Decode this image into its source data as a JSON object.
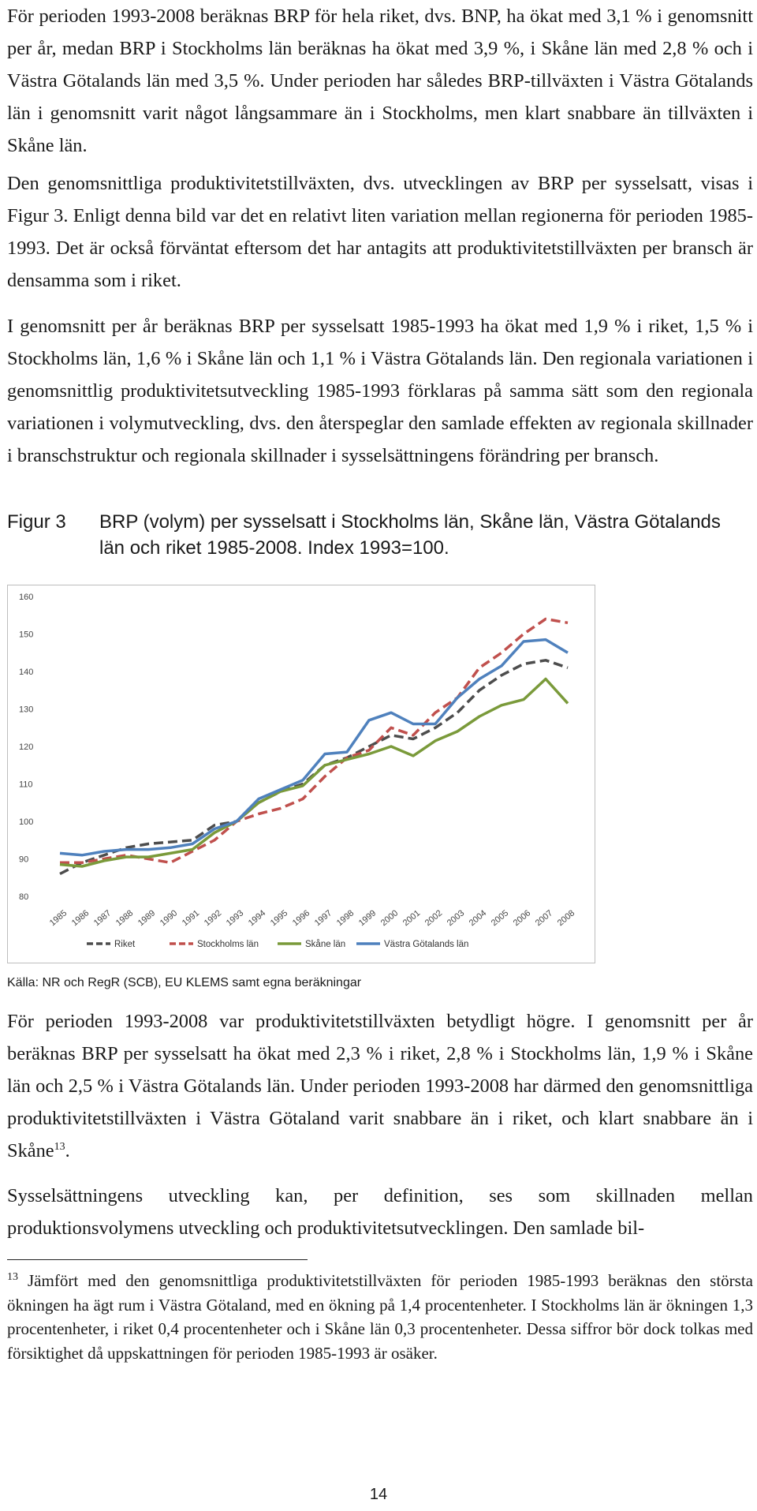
{
  "paragraphs": {
    "p1": "För perioden 1993-2008 beräknas BRP för hela riket, dvs. BNP, ha ökat med 3,1 % i genomsnitt per år, medan BRP i Stockholms län beräknas ha ökat med 3,9 %, i Skåne län med 2,8 % och i Västra Götalands län med 3,5 %. Under perioden har således BRP-tillväxten i Västra Götalands län i genomsnitt varit något långsammare än i Stockholms, men klart snabbare än tillväxten i Skåne län.",
    "p2": "Den genomsnittliga produktivitetstillväxten, dvs. utvecklingen av BRP per sysselsatt, visas i Figur 3. Enligt denna bild var det en relativt liten variation mellan regionerna för perioden 1985-1993. Det är också förväntat eftersom det har antagits att produktivitetstillväxten per bransch är densamma som i riket.",
    "p3": "I genomsnitt per år beräknas BRP per sysselsatt 1985-1993 ha ökat med 1,9 % i riket, 1,5 % i Stockholms län, 1,6 % i Skåne län och 1,1 % i Västra Götalands län. Den regionala variationen i genomsnittlig produktivitetsutveckling 1985-1993 förklaras på samma sätt som den regionala variationen i volymutveckling, dvs. den återspeglar den samlade effekten av regionala skillnader i branschstruktur och regionala skillnader i sysselsättningens förändring per bransch.",
    "p4": "För perioden 1993-2008 var produktivitetstillväxten betydligt högre. I genomsnitt per år beräknas BRP per sysselsatt ha ökat med 2,3 % i riket, 2,8 % i Stockholms län, 1,9 % i Skåne län och 2,5 % i Västra Götalands län. Under perioden 1993-2008 har därmed den genomsnittliga produktivitetstillväxten i Västra Götaland varit snabbare än i riket, och klart snabbare än i Skåne",
    "p4_footnote_ref": "13",
    "p4_end": ".",
    "p5": "Sysselsättningens utveckling kan, per definition, ses som skillnaden mellan produktionsvolymens utveckling och produktivitetsutvecklingen. Den samlade bil-"
  },
  "figure": {
    "label": "Figur 3",
    "caption": "BRP (volym) per sysselsatt i Stockholms län, Skåne län, Västra Götalands län och riket 1985-2008. Index 1993=100.",
    "source": "Källa: NR och RegR (SCB), EU KLEMS samt egna beräkningar"
  },
  "footnote": {
    "number": "13",
    "text": "Jämfört med den genomsnittliga produktivitetstillväxten för perioden 1985-1993 beräknas den största ökningen ha ägt rum i Västra Götaland, med en ökning på 1,4 procentenheter. I Stockholms län är ökningen 1,3 procentenheter, i riket 0,4 procentenheter och i Skåne län 0,3 procentenheter. Dessa siffror bör dock tolkas med försiktighet då uppskattningen för perioden 1985-1993 är osäker."
  },
  "page_number": "14",
  "chart_data": {
    "type": "line",
    "title": "",
    "xlabel": "",
    "ylabel": "",
    "ylim": [
      80,
      160
    ],
    "yticks": [
      80,
      90,
      100,
      110,
      120,
      130,
      140,
      150,
      160
    ],
    "grid": false,
    "legend_position": "bottom",
    "categories": [
      "1985",
      "1986",
      "1987",
      "1988",
      "1989",
      "1990",
      "1991",
      "1992",
      "1993",
      "1994",
      "1995",
      "1996",
      "1997",
      "1998",
      "1999",
      "2000",
      "2001",
      "2002",
      "2003",
      "2004",
      "2005",
      "2006",
      "2007",
      "2008"
    ],
    "series": [
      {
        "name": "Riket",
        "color": "#4d4d4d",
        "dash": "dashed",
        "values": [
          86,
          89,
          91,
          93,
          94,
          94.5,
          95,
          99,
          100,
          105,
          108,
          110,
          115,
          117,
          120,
          123,
          122,
          125,
          129,
          135,
          139,
          142,
          143,
          141
        ]
      },
      {
        "name": "Stockholms län",
        "color": "#c0504d",
        "dash": "dashed",
        "values": [
          89,
          89,
          90,
          91,
          90,
          89,
          92,
          95,
          100,
          102,
          103.5,
          106,
          112,
          117,
          119,
          125,
          123,
          129,
          133,
          141,
          145,
          150,
          154,
          153
        ]
      },
      {
        "name": "Skåne län",
        "color": "#7a9a3a",
        "dash": "solid",
        "values": [
          88.5,
          88,
          89.5,
          90.5,
          90.5,
          91.5,
          92.5,
          97,
          100,
          105,
          108,
          109.5,
          115,
          116.5,
          118,
          120,
          117.5,
          121.5,
          124,
          128,
          131,
          132.5,
          138,
          131.5
        ]
      },
      {
        "name": "Västra Götalands län",
        "color": "#4f81bd",
        "dash": "solid",
        "values": [
          91.5,
          91,
          92,
          92.5,
          92.5,
          93,
          94,
          98,
          100,
          106,
          108.5,
          111,
          118,
          118.5,
          127,
          129,
          126,
          126,
          133,
          138,
          141.5,
          148,
          148.5,
          145
        ]
      }
    ]
  }
}
